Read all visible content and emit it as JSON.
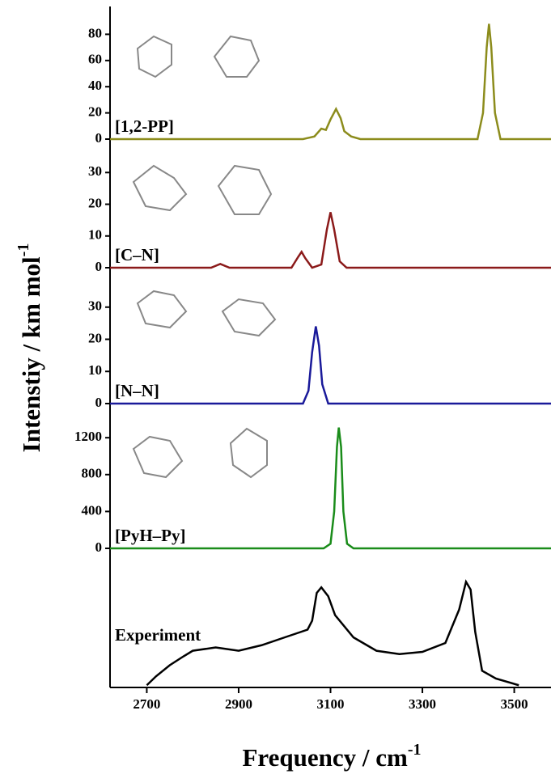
{
  "chart_data": [
    {
      "type": "line",
      "annotation": "[1,2-PP]",
      "ylabel": "Intenstiy / km mol",
      "ylabel_superscript": "-1",
      "xlim": [
        2620,
        3580
      ],
      "ylim": [
        0,
        100
      ],
      "yticks": [
        0,
        20,
        40,
        60,
        80
      ],
      "series": [
        {
          "color": "#8c8c1c",
          "x": [
            2620,
            3040,
            3065,
            3080,
            3090,
            3100,
            3112,
            3122,
            3130,
            3145,
            3165,
            3420,
            3432,
            3440,
            3445,
            3450,
            3458,
            3470,
            3580
          ],
          "values": [
            0,
            0,
            2,
            8,
            7,
            15,
            23,
            16,
            6,
            2,
            0,
            0,
            20,
            70,
            88,
            70,
            20,
            0,
            0
          ]
        }
      ]
    },
    {
      "type": "line",
      "annotation": "[C–N]",
      "xlim": [
        2620,
        3580
      ],
      "ylim": [
        0,
        39
      ],
      "yticks": [
        0,
        10,
        20,
        30
      ],
      "series": [
        {
          "color": "#8b1a1a",
          "x": [
            2620,
            2840,
            2860,
            2880,
            3015,
            3030,
            3037,
            3045,
            3060,
            3080,
            3092,
            3100,
            3108,
            3120,
            3135,
            3580
          ],
          "values": [
            0,
            0,
            1.2,
            0,
            0,
            3.5,
            5,
            3,
            0,
            1,
            12,
            17.5,
            12,
            2,
            0,
            0
          ]
        }
      ]
    },
    {
      "type": "line",
      "annotation": "[N–N]",
      "xlim": [
        2620,
        3580
      ],
      "ylim": [
        0,
        40
      ],
      "yticks": [
        0,
        10,
        20,
        30
      ],
      "series": [
        {
          "color": "#1a1a9a",
          "x": [
            2620,
            3040,
            3052,
            3060,
            3068,
            3075,
            3082,
            3095,
            3580
          ],
          "values": [
            0,
            0,
            4,
            16,
            24,
            18,
            6,
            0,
            0
          ]
        }
      ]
    },
    {
      "type": "line",
      "annotation": "[PyH–Py]",
      "xlim": [
        2620,
        3580
      ],
      "ylim": [
        0,
        1500
      ],
      "yticks": [
        0,
        400,
        800,
        1200
      ],
      "series": [
        {
          "color": "#1a8c1a",
          "x": [
            2620,
            3085,
            3100,
            3108,
            3114,
            3118,
            3123,
            3128,
            3136,
            3150,
            3580
          ],
          "values": [
            0,
            0,
            50,
            400,
            1100,
            1310,
            1100,
            400,
            50,
            0,
            0
          ]
        }
      ]
    },
    {
      "type": "line",
      "annotation": "Experiment",
      "xlabel": "Frequency / cm",
      "xlabel_superscript": "-1",
      "xlim": [
        2620,
        3580
      ],
      "ylim": [
        0,
        1.2
      ],
      "xticks": [
        2700,
        2900,
        3100,
        3300,
        3500
      ],
      "series": [
        {
          "color": "#000000",
          "x": [
            2700,
            2720,
            2750,
            2780,
            2800,
            2850,
            2900,
            2950,
            3000,
            3050,
            3060,
            3070,
            3080,
            3095,
            3110,
            3150,
            3200,
            3250,
            3300,
            3350,
            3380,
            3395,
            3405,
            3415,
            3430,
            3460,
            3510
          ],
          "values": [
            0.02,
            0.1,
            0.2,
            0.28,
            0.33,
            0.36,
            0.33,
            0.38,
            0.45,
            0.52,
            0.6,
            0.85,
            0.9,
            0.82,
            0.65,
            0.45,
            0.33,
            0.3,
            0.32,
            0.4,
            0.7,
            0.95,
            0.88,
            0.5,
            0.15,
            0.08,
            0.02
          ]
        }
      ]
    }
  ]
}
